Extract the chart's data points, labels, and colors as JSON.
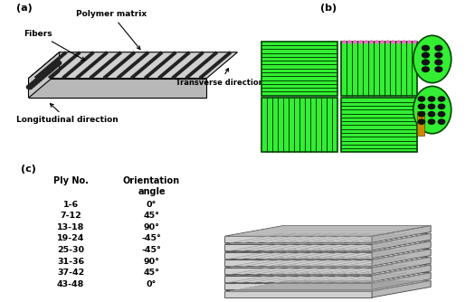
{
  "panel_a_label": "(a)",
  "panel_b_label": "(b)",
  "panel_c_label": "(c)",
  "panel_a_annotations": {
    "polymer_matrix": "Polymer matrix",
    "fibers": "Fibers",
    "transverse": "Transverse direction",
    "longitudinal": "Longitudinal direction"
  },
  "panel_c_table": {
    "col1_header": "Ply No.",
    "col2_header": "Orientation\nangle",
    "rows": [
      [
        "1-6",
        "0°"
      ],
      [
        "7-12",
        "45°"
      ],
      [
        "13-18",
        "90°"
      ],
      [
        "19-24",
        "-45°"
      ],
      [
        "25-30",
        "-45°"
      ],
      [
        "31-36",
        "90°"
      ],
      [
        "37-42",
        "45°"
      ],
      [
        "43-48",
        "0°"
      ]
    ]
  },
  "bg_color": "#ffffff",
  "text_color": "#000000",
  "fiber_dark": "#1a1a1a",
  "fiber_light": "#c8c8c8",
  "green_bright": "#33ee33",
  "green_dark": "#004400",
  "green_mid": "#22bb22",
  "pink_color": "#ff66cc",
  "layer_face": "#f0f0f0",
  "layer_edge": "#444444",
  "layer_side": "#cccccc",
  "layer_stripe": "#999999"
}
